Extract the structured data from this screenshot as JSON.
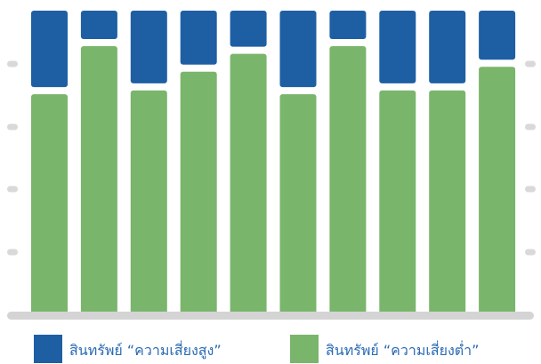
{
  "chart_data": {
    "type": "bar",
    "stacked": true,
    "normalized": true,
    "categories": [
      "",
      "",
      "",
      "",
      "",
      "",
      "",
      "",
      "",
      ""
    ],
    "ylim": [
      0,
      100
    ],
    "grid": false,
    "legend_position": "bottom",
    "series": [
      {
        "name": "สินทรัพย์ “ความเสี่ยงต่ำ”",
        "color": "#7ab56c",
        "values": [
          72.5,
          88.3,
          73.7,
          79.9,
          85.8,
          72.5,
          88.3,
          73.7,
          73.7,
          81.5
        ]
      },
      {
        "name": "สินทรัพย์ “ความเสี่ยงสูง”",
        "color": "#1e5fa3",
        "values": [
          27.5,
          11.7,
          26.3,
          20.1,
          14.2,
          27.5,
          11.7,
          26.3,
          26.3,
          18.5
        ]
      }
    ],
    "axis_tick_color": "#d9d9d9",
    "baseline_color": "#d4d4d4"
  }
}
